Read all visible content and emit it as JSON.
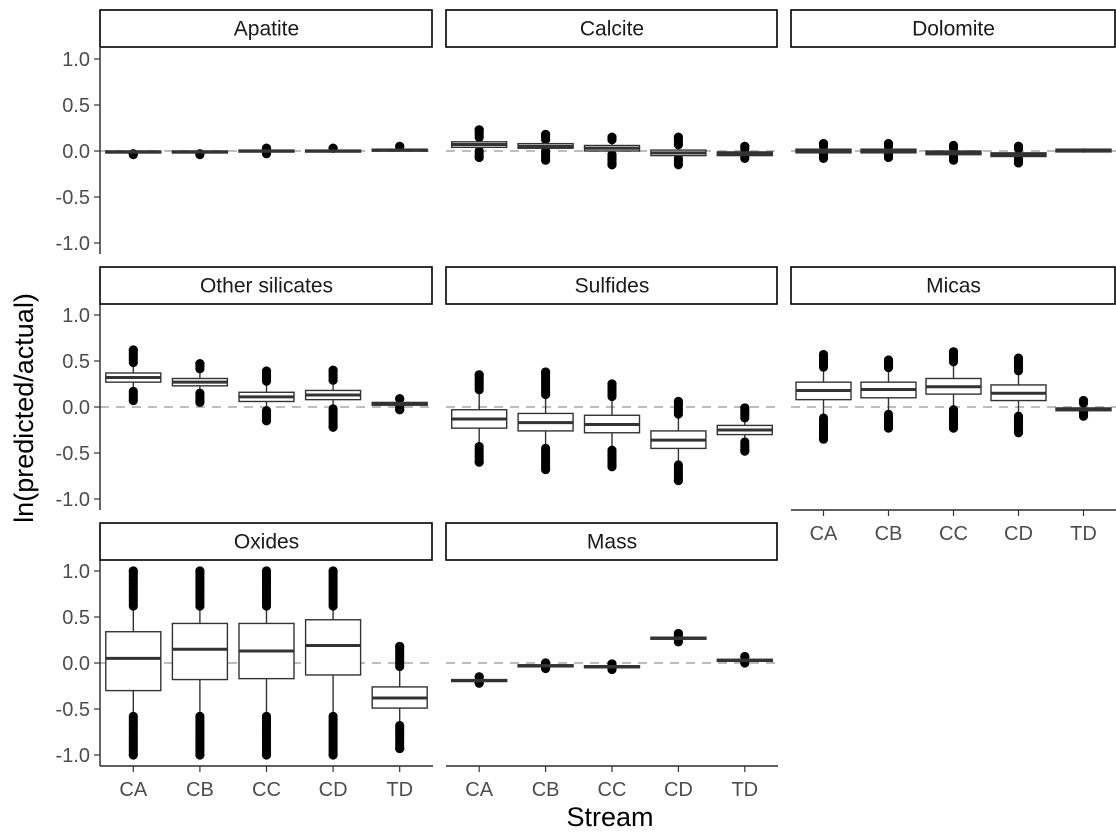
{
  "chart_data": {
    "type": "boxplot",
    "xlabel": "Stream",
    "ylabel": "ln(predicted/actual)",
    "categories": [
      "CA",
      "CB",
      "CC",
      "CD",
      "TD"
    ],
    "ylim": [
      -1.0,
      1.0
    ],
    "yticks": [
      "1.0",
      "0.5",
      "0.0",
      "-0.5",
      "-1.0"
    ],
    "reference_line": 0.0,
    "grid": false,
    "panels": [
      {
        "name": "Apatite",
        "boxes": [
          {
            "q1": -0.02,
            "median": -0.01,
            "q3": 0.0,
            "lo": -0.03,
            "hi": 0.01,
            "out_lo": -0.04,
            "out_hi": 0.01
          },
          {
            "q1": -0.02,
            "median": -0.01,
            "q3": 0.0,
            "lo": -0.03,
            "hi": 0.01,
            "out_lo": -0.04,
            "out_hi": 0.01
          },
          {
            "q1": -0.01,
            "median": 0.0,
            "q3": 0.01,
            "lo": -0.02,
            "hi": 0.02,
            "out_lo": -0.03,
            "out_hi": 0.03
          },
          {
            "q1": -0.01,
            "median": 0.0,
            "q3": 0.01,
            "lo": -0.02,
            "hi": 0.02,
            "out_lo": -0.02,
            "out_hi": 0.03
          },
          {
            "q1": 0.0,
            "median": 0.01,
            "q3": 0.02,
            "lo": -0.01,
            "hi": 0.03,
            "out_lo": -0.01,
            "out_hi": 0.05
          }
        ]
      },
      {
        "name": "Calcite",
        "boxes": [
          {
            "q1": 0.04,
            "median": 0.07,
            "q3": 0.1,
            "lo": 0.0,
            "hi": 0.14,
            "out_lo": -0.07,
            "out_hi": 0.23
          },
          {
            "q1": 0.03,
            "median": 0.05,
            "q3": 0.08,
            "lo": 0.0,
            "hi": 0.12,
            "out_lo": -0.1,
            "out_hi": 0.18
          },
          {
            "q1": 0.0,
            "median": 0.03,
            "q3": 0.06,
            "lo": -0.04,
            "hi": 0.1,
            "out_lo": -0.15,
            "out_hi": 0.15
          },
          {
            "q1": -0.05,
            "median": -0.02,
            "q3": 0.01,
            "lo": -0.08,
            "hi": 0.05,
            "out_lo": -0.15,
            "out_hi": 0.15
          },
          {
            "q1": -0.05,
            "median": -0.03,
            "q3": -0.01,
            "lo": -0.06,
            "hi": 0.01,
            "out_lo": -0.08,
            "out_hi": 0.05
          }
        ]
      },
      {
        "name": "Dolomite",
        "boxes": [
          {
            "q1": -0.02,
            "median": 0.0,
            "q3": 0.02,
            "lo": -0.04,
            "hi": 0.04,
            "out_lo": -0.08,
            "out_hi": 0.08
          },
          {
            "q1": -0.02,
            "median": 0.0,
            "q3": 0.02,
            "lo": -0.04,
            "hi": 0.04,
            "out_lo": -0.07,
            "out_hi": 0.08
          },
          {
            "q1": -0.04,
            "median": -0.02,
            "q3": 0.0,
            "lo": -0.06,
            "hi": 0.02,
            "out_lo": -0.1,
            "out_hi": 0.06
          },
          {
            "q1": -0.06,
            "median": -0.04,
            "q3": -0.02,
            "lo": -0.08,
            "hi": 0.0,
            "out_lo": -0.13,
            "out_hi": 0.05
          },
          {
            "q1": -0.01,
            "median": 0.01,
            "q3": 0.02,
            "lo": -0.02,
            "hi": 0.03,
            "out_lo": -0.02,
            "out_hi": 0.03
          }
        ]
      },
      {
        "name": "Other silicates",
        "boxes": [
          {
            "q1": 0.27,
            "median": 0.32,
            "q3": 0.37,
            "lo": 0.17,
            "hi": 0.47,
            "out_lo": 0.07,
            "out_hi": 0.62
          },
          {
            "q1": 0.23,
            "median": 0.27,
            "q3": 0.31,
            "lo": 0.15,
            "hi": 0.39,
            "out_lo": 0.05,
            "out_hi": 0.47
          },
          {
            "q1": 0.06,
            "median": 0.11,
            "q3": 0.16,
            "lo": -0.04,
            "hi": 0.26,
            "out_lo": -0.15,
            "out_hi": 0.39
          },
          {
            "q1": 0.08,
            "median": 0.13,
            "q3": 0.18,
            "lo": -0.02,
            "hi": 0.28,
            "out_lo": -0.22,
            "out_hi": 0.4
          },
          {
            "q1": 0.02,
            "median": 0.03,
            "q3": 0.05,
            "lo": 0.0,
            "hi": 0.07,
            "out_lo": -0.03,
            "out_hi": 0.09
          }
        ]
      },
      {
        "name": "Sulfides",
        "boxes": [
          {
            "q1": -0.23,
            "median": -0.13,
            "q3": -0.03,
            "lo": -0.43,
            "hi": 0.17,
            "out_lo": -0.6,
            "out_hi": 0.35
          },
          {
            "q1": -0.26,
            "median": -0.17,
            "q3": -0.07,
            "lo": -0.45,
            "hi": 0.12,
            "out_lo": -0.68,
            "out_hi": 0.38
          },
          {
            "q1": -0.28,
            "median": -0.19,
            "q3": -0.09,
            "lo": -0.47,
            "hi": 0.09,
            "out_lo": -0.65,
            "out_hi": 0.25
          },
          {
            "q1": -0.45,
            "median": -0.36,
            "q3": -0.26,
            "lo": -0.63,
            "hi": -0.08,
            "out_lo": -0.8,
            "out_hi": 0.06
          },
          {
            "q1": -0.3,
            "median": -0.25,
            "q3": -0.2,
            "lo": -0.38,
            "hi": -0.12,
            "out_lo": -0.48,
            "out_hi": -0.01
          }
        ]
      },
      {
        "name": "Micas",
        "boxes": [
          {
            "q1": 0.08,
            "median": 0.18,
            "q3": 0.27,
            "lo": -0.12,
            "hi": 0.43,
            "out_lo": -0.35,
            "out_hi": 0.57
          },
          {
            "q1": 0.1,
            "median": 0.19,
            "q3": 0.27,
            "lo": -0.08,
            "hi": 0.41,
            "out_lo": -0.23,
            "out_hi": 0.51
          },
          {
            "q1": 0.14,
            "median": 0.22,
            "q3": 0.31,
            "lo": -0.03,
            "hi": 0.47,
            "out_lo": -0.23,
            "out_hi": 0.6
          },
          {
            "q1": 0.07,
            "median": 0.15,
            "q3": 0.24,
            "lo": -0.1,
            "hi": 0.38,
            "out_lo": -0.28,
            "out_hi": 0.53
          },
          {
            "q1": -0.04,
            "median": -0.03,
            "q3": -0.01,
            "lo": -0.05,
            "hi": 0.02,
            "out_lo": -0.1,
            "out_hi": 0.07
          }
        ]
      },
      {
        "name": "Oxides",
        "boxes": [
          {
            "q1": -0.3,
            "median": 0.05,
            "q3": 0.34,
            "lo": -0.58,
            "hi": 0.6,
            "out_lo": -1.0,
            "out_hi": 1.0
          },
          {
            "q1": -0.18,
            "median": 0.15,
            "q3": 0.43,
            "lo": -0.58,
            "hi": 0.6,
            "out_lo": -1.0,
            "out_hi": 1.0
          },
          {
            "q1": -0.17,
            "median": 0.13,
            "q3": 0.43,
            "lo": -0.58,
            "hi": 0.6,
            "out_lo": -1.0,
            "out_hi": 1.0
          },
          {
            "q1": -0.13,
            "median": 0.19,
            "q3": 0.47,
            "lo": -0.58,
            "hi": 0.6,
            "out_lo": -1.0,
            "out_hi": 1.0
          },
          {
            "q1": -0.49,
            "median": -0.38,
            "q3": -0.26,
            "lo": -0.68,
            "hi": -0.05,
            "out_lo": -0.93,
            "out_hi": 0.18
          }
        ]
      },
      {
        "name": "Mass",
        "boxes": [
          {
            "q1": -0.2,
            "median": -0.19,
            "q3": -0.18,
            "lo": -0.21,
            "hi": -0.17,
            "out_lo": -0.22,
            "out_hi": -0.15
          },
          {
            "q1": -0.04,
            "median": -0.03,
            "q3": -0.02,
            "lo": -0.05,
            "hi": -0.01,
            "out_lo": -0.06,
            "out_hi": 0.0
          },
          {
            "q1": -0.05,
            "median": -0.04,
            "q3": -0.03,
            "lo": -0.06,
            "hi": -0.02,
            "out_lo": -0.07,
            "out_hi": -0.01
          },
          {
            "q1": 0.26,
            "median": 0.27,
            "q3": 0.28,
            "lo": 0.25,
            "hi": 0.29,
            "out_lo": 0.23,
            "out_hi": 0.32
          },
          {
            "q1": 0.02,
            "median": 0.03,
            "q3": 0.04,
            "lo": 0.01,
            "hi": 0.05,
            "out_lo": 0.0,
            "out_hi": 0.07
          }
        ]
      }
    ]
  }
}
